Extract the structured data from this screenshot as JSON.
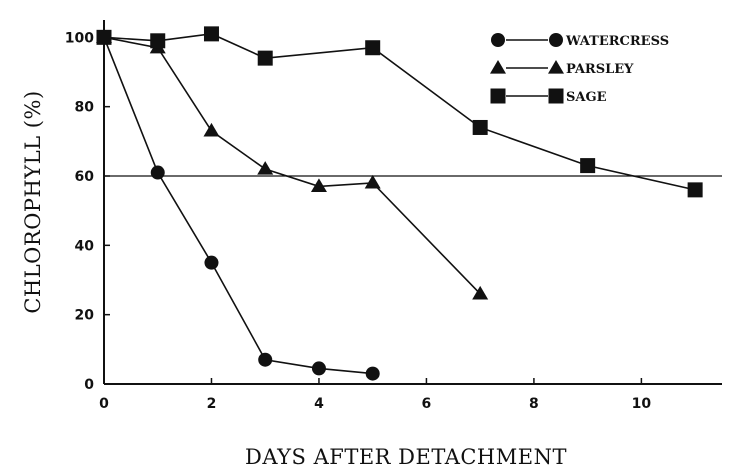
{
  "chart_data": {
    "type": "line",
    "xlabel": "DAYS AFTER DETACHMENT",
    "ylabel": "CHLOROPHYLL (%)",
    "xlim": [
      0,
      11.5
    ],
    "ylim": [
      0,
      105
    ],
    "xticks": [
      0,
      2,
      4,
      6,
      8,
      10
    ],
    "yticks": [
      0,
      20,
      40,
      60,
      80,
      100
    ],
    "grid": false,
    "legend_position": "top-right",
    "reference_line": {
      "y": 60
    },
    "series": [
      {
        "name": "WATERCRESS",
        "marker": "circle",
        "x": [
          0,
          1,
          2,
          3,
          4,
          5
        ],
        "y": [
          100,
          61,
          35,
          7,
          4.5,
          3
        ]
      },
      {
        "name": "PARSLEY",
        "marker": "triangle",
        "x": [
          0,
          1,
          2,
          3,
          4,
          5,
          7
        ],
        "y": [
          100,
          97,
          73,
          62,
          57,
          58,
          26
        ]
      },
      {
        "name": "SAGE",
        "marker": "square",
        "x": [
          0,
          1,
          2,
          3,
          5,
          7,
          9,
          11
        ],
        "y": [
          100,
          99,
          101,
          94,
          97,
          74,
          63,
          56
        ]
      }
    ]
  }
}
